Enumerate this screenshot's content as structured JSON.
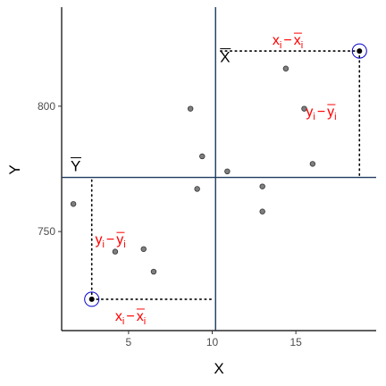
{
  "chart_data": {
    "type": "scatter",
    "title": "",
    "xlabel": "X",
    "ylabel": "Y",
    "xlim": [
      1.0,
      19.8
    ],
    "ylim": [
      710.5,
      839.5
    ],
    "x_ticks": [
      5,
      10,
      15
    ],
    "y_ticks": [
      750,
      800
    ],
    "x_tick_labels": [
      "5",
      "10",
      "15"
    ],
    "y_tick_labels": [
      "750",
      "800"
    ],
    "grid": false,
    "mean_x": 10.2,
    "mean_y": 771.6,
    "mean_x_label": "X",
    "mean_y_label": "Y",
    "points": [
      {
        "x": 1.7,
        "y": 761
      },
      {
        "x": 4.2,
        "y": 742
      },
      {
        "x": 5.9,
        "y": 743
      },
      {
        "x": 6.5,
        "y": 734
      },
      {
        "x": 8.7,
        "y": 799
      },
      {
        "x": 9.1,
        "y": 767
      },
      {
        "x": 9.4,
        "y": 780
      },
      {
        "x": 10.9,
        "y": 774
      },
      {
        "x": 13.0,
        "y": 768
      },
      {
        "x": 13.0,
        "y": 758
      },
      {
        "x": 14.4,
        "y": 815
      },
      {
        "x": 15.5,
        "y": 799
      },
      {
        "x": 16.0,
        "y": 777
      }
    ],
    "highlighted_points": [
      {
        "x": 2.8,
        "y": 723
      },
      {
        "x": 18.8,
        "y": 822
      }
    ],
    "annotations": {
      "dev_x_symbol": "x",
      "dev_x_sub": "i",
      "dev_y_symbol": "y",
      "dev_y_sub": "i",
      "minus": "−"
    },
    "colors": {
      "axis_line": "#000000",
      "mean_line": "#1f3a5f",
      "point_fill": "#7f7f7f",
      "highlight_ring": "#0000cc",
      "annotation": "#ff0000",
      "tick_label": "#4d4d4d"
    }
  }
}
